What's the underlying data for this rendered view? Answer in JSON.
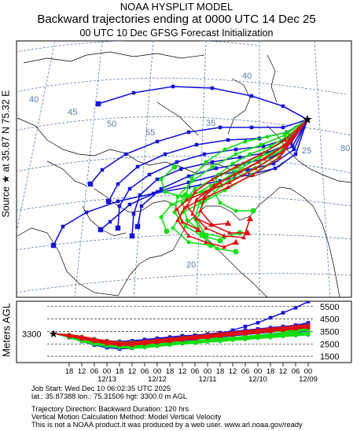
{
  "header": {
    "model": "NOAA HYSPLIT MODEL",
    "title": "Backward trajectories ending at 0000 UTC 14 Dec 25",
    "subtitle": "00 UTC 10 Dec    GFSG  Forecast Initialization"
  },
  "side_label": "Source ★ at    35.87 N    75.32 E",
  "meters_label": "Meters AGL",
  "colors": {
    "blue": "#1515d8",
    "red": "#e01010",
    "green": "#10e010",
    "grid": "#5a7da8"
  },
  "chart_data": [
    {
      "type": "line",
      "title": "Backward trajectories ending at 0000 UTC 14 Dec 25",
      "map_grid_labels": {
        "latitudes": [
          "40",
          "45",
          "50",
          "55",
          "35",
          "25",
          "20"
        ],
        "longitudes": [
          "80",
          "40",
          "35",
          "30",
          "25",
          "20"
        ]
      },
      "source": {
        "lat": 35.87,
        "lon": 75.32,
        "marker": "star"
      },
      "series": [
        {
          "color": "#1515d8",
          "marker": "square"
        },
        {
          "color": "#e01010",
          "marker": "triangle"
        },
        {
          "color": "#10e010",
          "marker": "circle"
        }
      ]
    },
    {
      "type": "line",
      "ylabel": "Meters AGL",
      "start_height_label": "3300",
      "y_ticks": [
        "5500",
        "4500",
        "3500",
        "2500",
        "1500"
      ],
      "x_ticks": [
        "18",
        "12",
        "06",
        "00",
        "18",
        "12",
        "06",
        "00",
        "18",
        "12",
        "06",
        "00",
        "18",
        "12",
        "06",
        "00",
        "18",
        "12",
        "06",
        "00"
      ],
      "date_labels": [
        "12/13",
        "12/12",
        "12/11",
        "12/10",
        "12/09"
      ]
    }
  ],
  "info": {
    "line1": "Job Start: Wed Dec 10 06:02:35 UTC 2025",
    "line2": "lat.: 35.87388   lon.: 75.31506    hgt: 3300.0 m AGL",
    "line3": "Trajectory Direction: Backward      Duration: 120 hrs",
    "line4": "Vertical Motion Calculation Method: Model Vertical Velocity",
    "line5": "This is not a NOAA product.It was produced by a web user. www.arl.noaa.gov/ready"
  }
}
